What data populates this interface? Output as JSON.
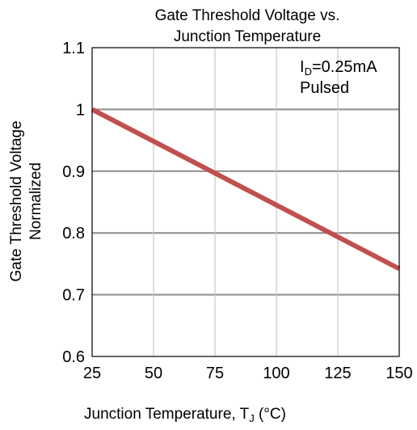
{
  "chart_data": {
    "type": "line",
    "title_lines": [
      "Gate Threshold  Voltage vs.",
      "Junction Temperature"
    ],
    "xlabel": {
      "main": "Junction Temperature, T",
      "sub": "J",
      "suffix": " (°C)"
    },
    "ylabel_lines": [
      "Gate Threshold  Voltage",
      "Normalized"
    ],
    "xlim": [
      25,
      150
    ],
    "ylim": [
      0.6,
      1.1
    ],
    "xticks": [
      25,
      50,
      75,
      100,
      125,
      150
    ],
    "xtick_labels": [
      "25",
      "50",
      "75",
      "100",
      "125",
      "150"
    ],
    "yticks": [
      0.6,
      0.7,
      0.8,
      0.9,
      1.0,
      1.1
    ],
    "ytick_labels": [
      "0.6",
      "0.7",
      "0.8",
      "0.9",
      "1",
      "1.1"
    ],
    "grid": true,
    "annotation": {
      "line1_main": "I",
      "line1_sub": "D",
      "line1_rest": "=0.25mA",
      "line2": "Pulsed"
    },
    "series": [
      {
        "color": "#c0504d",
        "x": [
          25,
          150
        ],
        "y": [
          1.0,
          0.742
        ]
      }
    ]
  }
}
